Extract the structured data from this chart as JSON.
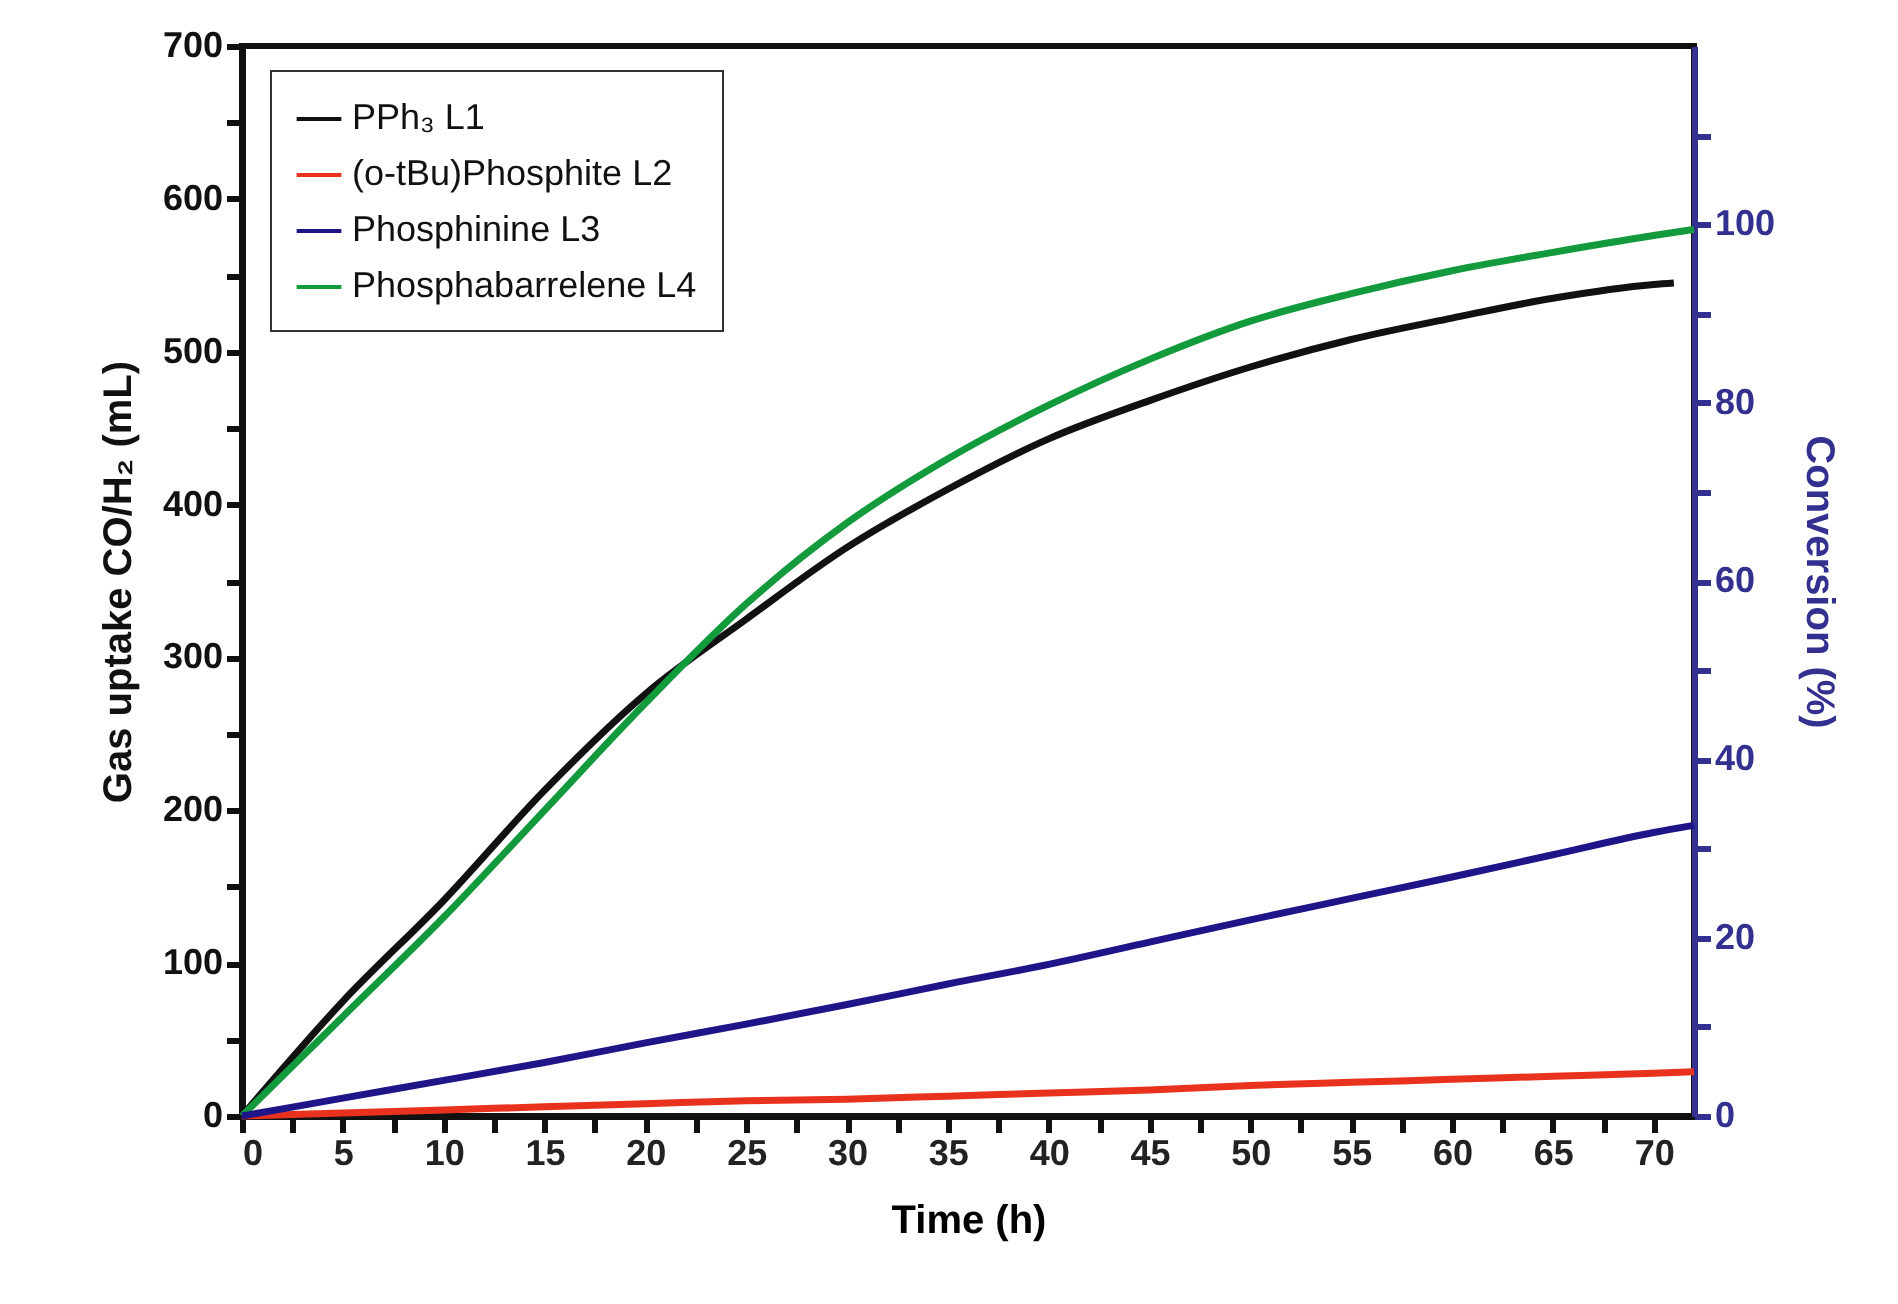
{
  "chart_data": {
    "type": "line",
    "xlabel": "Time (h)",
    "ylabel": "Gas uptake CO/H₂ (mL)",
    "y2label": "Conversion (%)",
    "xlim": [
      0,
      72
    ],
    "xticks": [
      0,
      {
        "value": 2.5,
        "label": null
      },
      5,
      {
        "value": 7.5,
        "label": null
      },
      10,
      {
        "value": 12.5,
        "label": null
      },
      15,
      {
        "value": 17.5,
        "label": null
      },
      20,
      {
        "value": 22.5,
        "label": null
      },
      25,
      {
        "value": 27.5,
        "label": null
      },
      30,
      {
        "value": 32.5,
        "label": null
      },
      35,
      {
        "value": 37.5,
        "label": null
      },
      40,
      {
        "value": 42.5,
        "label": null
      },
      45,
      {
        "value": 47.5,
        "label": null
      },
      50,
      {
        "value": 52.5,
        "label": null
      },
      55,
      {
        "value": 57.5,
        "label": null
      },
      60,
      {
        "value": 62.5,
        "label": null
      },
      65,
      {
        "value": 67.5,
        "label": null
      },
      70
    ],
    "ylim": [
      0,
      700
    ],
    "yticks": [
      0,
      {
        "value": 50,
        "label": null
      },
      100,
      {
        "value": 150,
        "label": null
      },
      200,
      {
        "value": 250,
        "label": null
      },
      300,
      {
        "value": 350,
        "label": null
      },
      400,
      {
        "value": 450,
        "label": null
      },
      500,
      {
        "value": 550,
        "label": null
      },
      600,
      {
        "value": 650,
        "label": null
      },
      700
    ],
    "y2lim": [
      0,
      120
    ],
    "y2ticks": [
      0,
      {
        "value": 10,
        "label": null
      },
      20,
      {
        "value": 30,
        "label": null
      },
      40,
      {
        "value": 50,
        "label": null
      },
      60,
      {
        "value": 70,
        "label": null
      },
      80,
      {
        "value": 90,
        "label": null
      },
      100,
      {
        "value": 110,
        "label": null
      }
    ],
    "x": [
      0,
      5,
      10,
      15,
      20,
      25,
      30,
      35,
      40,
      45,
      50,
      55,
      60,
      65,
      70,
      72
    ],
    "legend": "top left",
    "grid": false,
    "series": [
      {
        "name": "PPh₃ L1",
        "color": "#111111",
        "x": [
          0,
          5,
          10,
          15,
          20,
          25,
          30,
          35,
          40,
          45,
          50,
          55,
          60,
          65,
          70,
          71
        ],
        "values": [
          0,
          75,
          141,
          213,
          276,
          325,
          372,
          410,
          443,
          468,
          490,
          508,
          522,
          535,
          544,
          545
        ]
      },
      {
        "name": "(o-tBu)Phosphite L2",
        "color": "#e8321e",
        "values": [
          0,
          2,
          4,
          6,
          8,
          10,
          11,
          13,
          15,
          17,
          20,
          22,
          24,
          26,
          28,
          29
        ]
      },
      {
        "name": "Phosphinine L3",
        "color": "#1f1488",
        "axis": "y2",
        "values": [
          0,
          2.0,
          4.0,
          6.0,
          8.2,
          10.3,
          12.5,
          14.8,
          17.0,
          19.5,
          22.0,
          24.4,
          26.8,
          29.3,
          31.8,
          32.6
        ]
      },
      {
        "name": "Phosphabarrelene L4",
        "color": "#139a3c",
        "values": [
          0,
          65,
          130,
          200,
          270,
          335,
          388,
          430,
          465,
          495,
          520,
          538,
          553,
          565,
          576,
          580
        ]
      }
    ]
  }
}
